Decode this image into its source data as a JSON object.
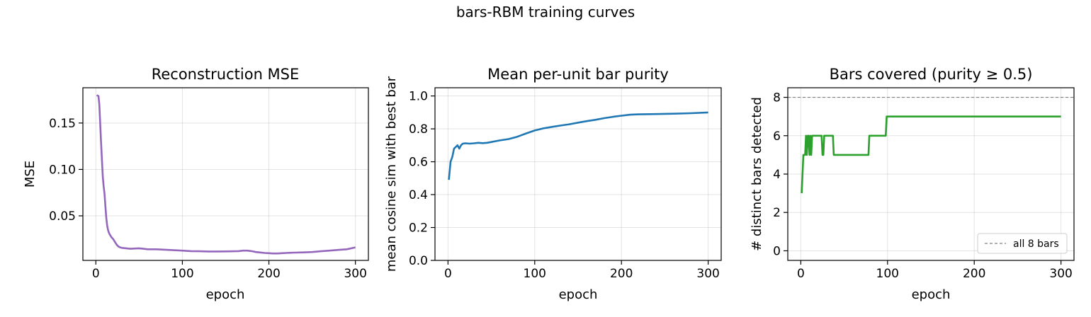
{
  "suptitle": "bars-RBM training curves",
  "chart_data": [
    {
      "type": "line",
      "title": "Reconstruction MSE",
      "xlabel": "epoch",
      "ylabel": "MSE",
      "xlim": [
        -15,
        315
      ],
      "ylim": [
        0.002,
        0.188
      ],
      "xticks": [
        0,
        100,
        200,
        300
      ],
      "yticks": [
        0.05,
        0.1,
        0.15
      ],
      "ytick_labels": [
        "0.05",
        "0.10",
        "0.15"
      ],
      "grid": true,
      "series": [
        {
          "color": "#9467bd",
          "x": [
            1,
            3,
            4,
            5,
            6,
            7,
            8,
            9,
            10,
            11,
            12,
            13,
            14,
            15,
            16,
            18,
            20,
            22,
            24,
            26,
            28,
            30,
            35,
            40,
            45,
            50,
            55,
            60,
            70,
            80,
            90,
            100,
            110,
            120,
            130,
            140,
            150,
            160,
            165,
            170,
            175,
            180,
            185,
            190,
            195,
            200,
            205,
            210,
            215,
            220,
            225,
            230,
            240,
            250,
            260,
            270,
            280,
            290,
            300
          ],
          "y": [
            0.18,
            0.179,
            0.17,
            0.15,
            0.13,
            0.11,
            0.092,
            0.082,
            0.074,
            0.06,
            0.048,
            0.04,
            0.035,
            0.032,
            0.03,
            0.027,
            0.025,
            0.022,
            0.019,
            0.017,
            0.016,
            0.0155,
            0.015,
            0.0145,
            0.0148,
            0.015,
            0.0145,
            0.014,
            0.014,
            0.0135,
            0.013,
            0.0125,
            0.012,
            0.0118,
            0.0116,
            0.0116,
            0.0117,
            0.0118,
            0.012,
            0.0125,
            0.0125,
            0.012,
            0.011,
            0.0105,
            0.01,
            0.0098,
            0.0095,
            0.0095,
            0.0098,
            0.01,
            0.0102,
            0.0104,
            0.0106,
            0.011,
            0.0118,
            0.0125,
            0.0133,
            0.014,
            0.016
          ]
        }
      ]
    },
    {
      "type": "line",
      "title": "Mean per-unit bar purity",
      "xlabel": "epoch",
      "ylabel": "mean cosine sim with best bar",
      "xlim": [
        -15,
        315
      ],
      "ylim": [
        0.0,
        1.05
      ],
      "xticks": [
        0,
        100,
        200,
        300
      ],
      "yticks": [
        0.0,
        0.2,
        0.4,
        0.6,
        0.8,
        1.0
      ],
      "ytick_labels": [
        "0.0",
        "0.2",
        "0.4",
        "0.6",
        "0.8",
        "1.0"
      ],
      "grid": true,
      "series": [
        {
          "color": "#1f77b4",
          "x": [
            1,
            3,
            5,
            7,
            9,
            11,
            13,
            15,
            17,
            20,
            25,
            30,
            35,
            40,
            45,
            50,
            55,
            60,
            70,
            80,
            90,
            100,
            110,
            120,
            130,
            140,
            150,
            160,
            170,
            180,
            190,
            200,
            210,
            220,
            240,
            260,
            280,
            300
          ],
          "y": [
            0.49,
            0.6,
            0.63,
            0.68,
            0.69,
            0.7,
            0.68,
            0.7,
            0.71,
            0.712,
            0.71,
            0.712,
            0.715,
            0.713,
            0.715,
            0.72,
            0.725,
            0.73,
            0.738,
            0.752,
            0.772,
            0.79,
            0.803,
            0.812,
            0.82,
            0.828,
            0.838,
            0.847,
            0.855,
            0.865,
            0.873,
            0.88,
            0.886,
            0.888,
            0.89,
            0.892,
            0.895,
            0.9
          ]
        }
      ]
    },
    {
      "type": "line",
      "title": "Bars covered (purity ≥ 0.5)",
      "xlabel": "epoch",
      "ylabel": "# distinct bars detected",
      "xlim": [
        -15,
        315
      ],
      "ylim": [
        -0.5,
        8.5
      ],
      "xticks": [
        0,
        100,
        200,
        300
      ],
      "yticks": [
        0,
        2,
        4,
        6,
        8
      ],
      "ytick_labels": [
        "0",
        "2",
        "4",
        "6",
        "8"
      ],
      "grid": true,
      "hline": {
        "y": 8,
        "label": "all 8 bars",
        "color": "#808080"
      },
      "legend": "lower-right",
      "series": [
        {
          "color": "#2ca02c",
          "x": [
            1,
            3,
            4,
            5,
            6,
            7,
            8,
            9,
            10,
            11,
            12,
            13,
            14,
            15,
            16,
            20,
            24,
            25,
            26,
            27,
            28,
            30,
            35,
            37,
            38,
            40,
            60,
            78,
            79,
            80,
            97,
            98,
            99,
            100,
            150,
            200,
            250,
            300
          ],
          "y": [
            3,
            5,
            5,
            5,
            6,
            5,
            6,
            6,
            5,
            6,
            5,
            6,
            6,
            6,
            6,
            6,
            6,
            5,
            5,
            6,
            6,
            6,
            6,
            6,
            5,
            5,
            5,
            5,
            6,
            6,
            6,
            6,
            7,
            7,
            7,
            7,
            7,
            7
          ]
        }
      ]
    }
  ]
}
